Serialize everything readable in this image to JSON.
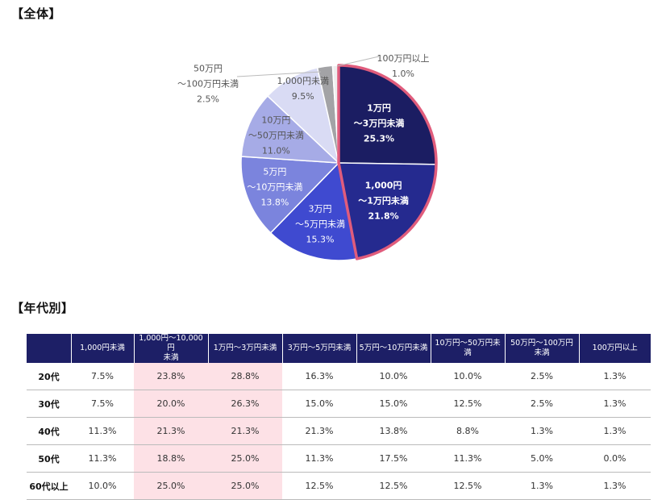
{
  "sections": {
    "overall_heading": "【全体】",
    "age_heading": "【年代別】"
  },
  "colors": {
    "pink_highlight": "#fde1e6",
    "highlight_border": "#e05c7c",
    "header_bg": "#1d1f66"
  },
  "chart_data": {
    "type": "pie",
    "title": "【全体】",
    "start_angle_deg": 0,
    "direction": "clockwise",
    "slices": [
      {
        "lines": [
          "1万円",
          "〜3万円未満",
          "25.3%"
        ],
        "value": 25.3,
        "color": "#1b1d62",
        "highlight": true
      },
      {
        "lines": [
          "1,000円",
          "〜1万円未満",
          "21.8%"
        ],
        "value": 21.8,
        "color": "#252a8f",
        "highlight": true
      },
      {
        "lines": [
          "3万円",
          "〜5万円未満",
          "15.3%"
        ],
        "value": 15.3,
        "color": "#3f4ad0"
      },
      {
        "lines": [
          "5万円",
          "〜10万円未満",
          "13.8%"
        ],
        "value": 13.8,
        "color": "#7b84dd"
      },
      {
        "lines": [
          "10万円",
          "〜50万円未満",
          "11.0%"
        ],
        "value": 11.0,
        "color": "#a6abe6"
      },
      {
        "lines": [
          "1,000円未満",
          "9.5%"
        ],
        "value": 9.5,
        "color": "#d9dbf4"
      },
      {
        "lines": [
          "50万円",
          "〜100万円未満",
          "2.5%"
        ],
        "value": 2.5,
        "color": "#a3a3a6"
      },
      {
        "lines": [
          "100万円以上",
          "1.0%"
        ],
        "value": 1.0,
        "color": "#eeeeee"
      }
    ]
  },
  "table": {
    "columns": [
      "",
      "1,000円未満",
      "1,000円〜10,000円\n未満",
      "1万円〜3万円未満",
      "3万円〜5万円未満",
      "5万円〜10万円未満",
      "10万円〜50万円未満",
      "50万円〜100万円\n未満",
      "100万円以上"
    ],
    "highlight_columns": [
      2,
      3
    ],
    "rows": [
      {
        "label": "20代",
        "values": [
          "7.5%",
          "23.8%",
          "28.8%",
          "16.3%",
          "10.0%",
          "10.0%",
          "2.5%",
          "1.3%"
        ]
      },
      {
        "label": "30代",
        "values": [
          "7.5%",
          "20.0%",
          "26.3%",
          "15.0%",
          "15.0%",
          "12.5%",
          "2.5%",
          "1.3%"
        ]
      },
      {
        "label": "40代",
        "values": [
          "11.3%",
          "21.3%",
          "21.3%",
          "21.3%",
          "13.8%",
          "8.8%",
          "1.3%",
          "1.3%"
        ]
      },
      {
        "label": "50代",
        "values": [
          "11.3%",
          "18.8%",
          "25.0%",
          "11.3%",
          "17.5%",
          "11.3%",
          "5.0%",
          "0.0%"
        ]
      },
      {
        "label": "60代以上",
        "values": [
          "10.0%",
          "25.0%",
          "25.0%",
          "12.5%",
          "12.5%",
          "12.5%",
          "1.3%",
          "1.3%"
        ]
      }
    ]
  }
}
